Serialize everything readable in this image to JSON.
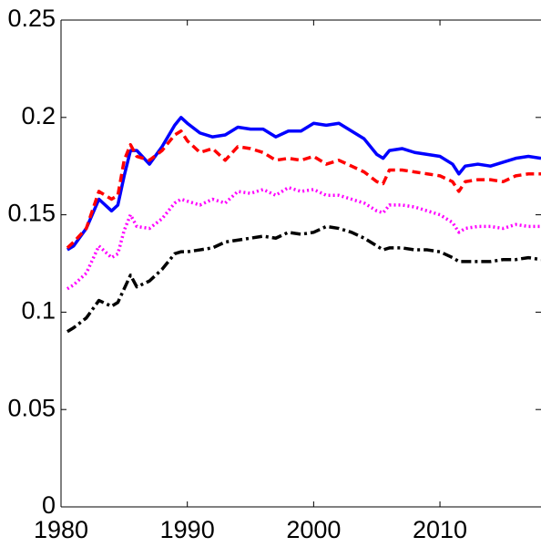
{
  "chart_data": {
    "type": "line",
    "x": [
      1980.5,
      1981,
      1982,
      1983,
      1984,
      1984.5,
      1985,
      1985.5,
      1986,
      1987,
      1988,
      1989,
      1989.5,
      1990,
      1991,
      1992,
      1993,
      1994,
      1995,
      1996,
      1997,
      1998,
      1999,
      2000,
      2001,
      2002,
      2003,
      2004,
      2005,
      2005.5,
      2006,
      2007,
      2008,
      2009,
      2010,
      2011,
      2011.5,
      2012,
      2013,
      2014,
      2015,
      2016,
      2017,
      2018
    ],
    "series": [
      {
        "color": "#0000ff",
        "style": "solid",
        "values": [
          0.132,
          0.134,
          0.143,
          0.158,
          0.152,
          0.155,
          0.17,
          0.183,
          0.183,
          0.176,
          0.185,
          0.196,
          0.2,
          0.197,
          0.192,
          0.19,
          0.191,
          0.195,
          0.194,
          0.194,
          0.19,
          0.193,
          0.193,
          0.197,
          0.196,
          0.197,
          0.193,
          0.189,
          0.181,
          0.179,
          0.183,
          0.184,
          0.182,
          0.181,
          0.18,
          0.176,
          0.171,
          0.175,
          0.176,
          0.175,
          0.177,
          0.179,
          0.18,
          0.179
        ]
      },
      {
        "color": "#ff0000",
        "style": "dashed",
        "values": [
          0.133,
          0.136,
          0.143,
          0.162,
          0.158,
          0.16,
          0.178,
          0.186,
          0.18,
          0.178,
          0.183,
          0.191,
          0.193,
          0.188,
          0.182,
          0.184,
          0.178,
          0.185,
          0.184,
          0.182,
          0.178,
          0.179,
          0.178,
          0.18,
          0.176,
          0.178,
          0.175,
          0.172,
          0.167,
          0.166,
          0.173,
          0.173,
          0.172,
          0.171,
          0.17,
          0.167,
          0.162,
          0.167,
          0.168,
          0.168,
          0.167,
          0.17,
          0.171,
          0.171
        ]
      },
      {
        "color": "#ff00ff",
        "style": "dotted",
        "values": [
          0.112,
          0.114,
          0.12,
          0.134,
          0.128,
          0.13,
          0.142,
          0.15,
          0.144,
          0.143,
          0.148,
          0.156,
          0.158,
          0.157,
          0.155,
          0.158,
          0.156,
          0.162,
          0.161,
          0.163,
          0.16,
          0.164,
          0.162,
          0.163,
          0.16,
          0.16,
          0.158,
          0.156,
          0.152,
          0.151,
          0.155,
          0.155,
          0.154,
          0.152,
          0.15,
          0.146,
          0.141,
          0.143,
          0.144,
          0.144,
          0.143,
          0.145,
          0.144,
          0.144
        ]
      },
      {
        "color": "#000000",
        "style": "dashdot",
        "values": [
          0.09,
          0.092,
          0.097,
          0.106,
          0.103,
          0.105,
          0.112,
          0.119,
          0.113,
          0.116,
          0.122,
          0.13,
          0.131,
          0.131,
          0.132,
          0.133,
          0.136,
          0.137,
          0.138,
          0.139,
          0.138,
          0.141,
          0.14,
          0.141,
          0.144,
          0.143,
          0.141,
          0.138,
          0.134,
          0.132,
          0.133,
          0.133,
          0.132,
          0.132,
          0.131,
          0.128,
          0.126,
          0.126,
          0.126,
          0.126,
          0.127,
          0.127,
          0.128,
          0.127
        ]
      }
    ],
    "xlim": [
      1980,
      2018
    ],
    "xticks": [
      1980,
      1990,
      2000,
      2010
    ],
    "ylim": [
      0,
      0.25
    ],
    "yticks": [
      0,
      0.05,
      0.1,
      0.15,
      0.2,
      0.25
    ],
    "grid": false
  }
}
